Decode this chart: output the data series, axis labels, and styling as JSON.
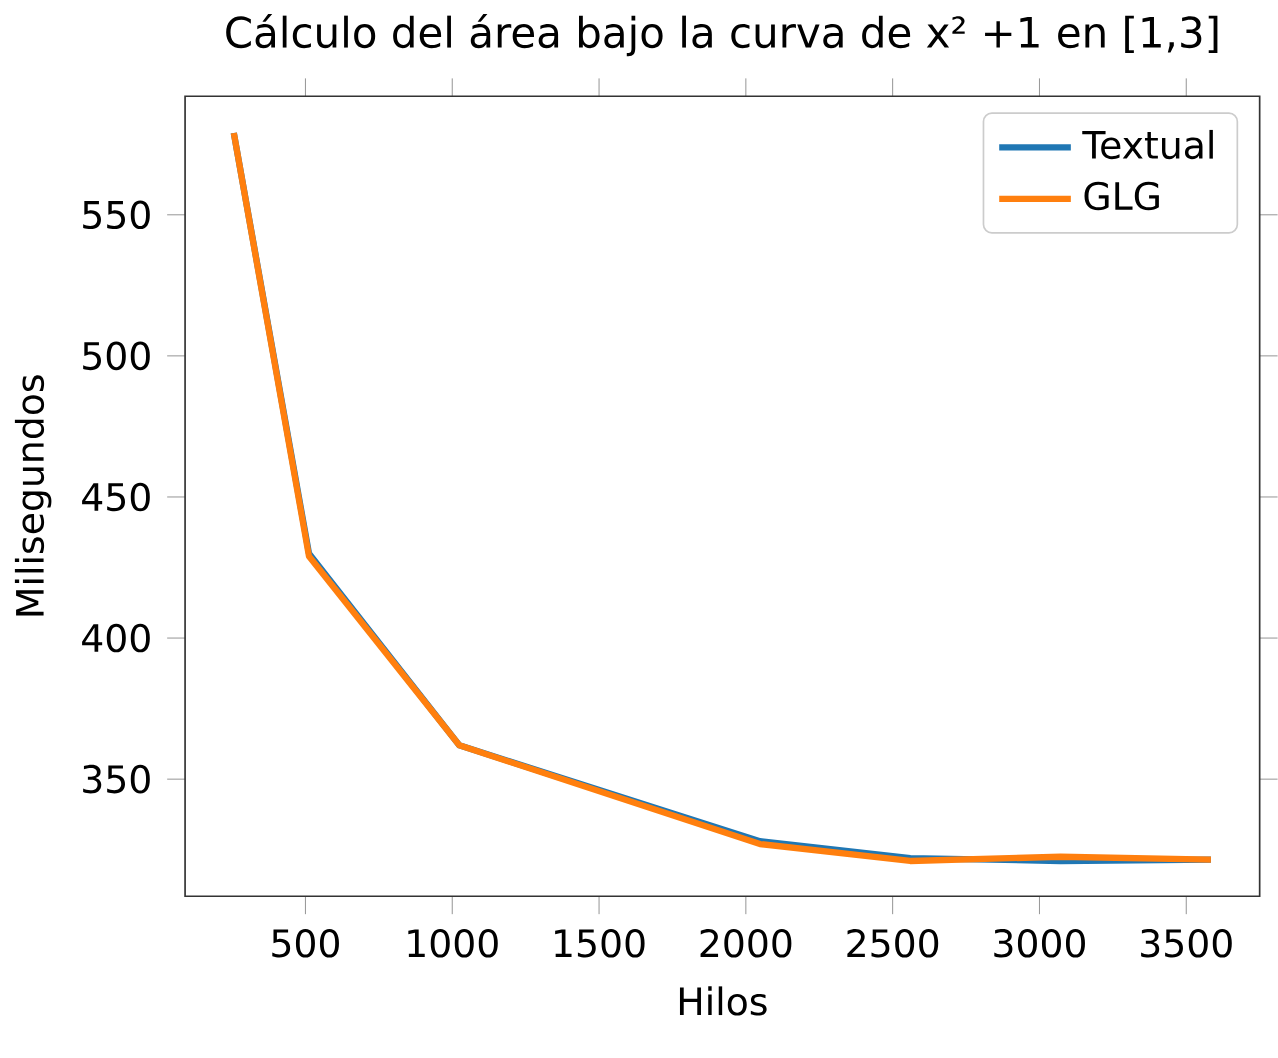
{
  "chart_data": {
    "type": "line",
    "title": "Cálculo del área bajo la curva de x² +1 en [1,3]",
    "xlabel": "Hilos",
    "ylabel": "Milisegundos",
    "x": [
      256,
      512,
      1024,
      2048,
      2560,
      3072,
      3584
    ],
    "series": [
      {
        "name": "Textual",
        "color": "#1f77b4",
        "values": [
          579,
          430,
          362,
          328,
          322,
          321,
          321.5
        ]
      },
      {
        "name": "GLG",
        "color": "#ff7f0e",
        "values": [
          579,
          429,
          362,
          327,
          321,
          322.5,
          321.5
        ]
      }
    ],
    "xlim": [
      90,
      3750
    ],
    "ylim": [
      308.5,
      592
    ],
    "xticks": [
      500,
      1000,
      1500,
      2000,
      2500,
      3000,
      3500
    ],
    "yticks": [
      350,
      400,
      450,
      500,
      550
    ],
    "legend": "top right",
    "grid": false,
    "marker": "none",
    "line_style": "solid"
  }
}
